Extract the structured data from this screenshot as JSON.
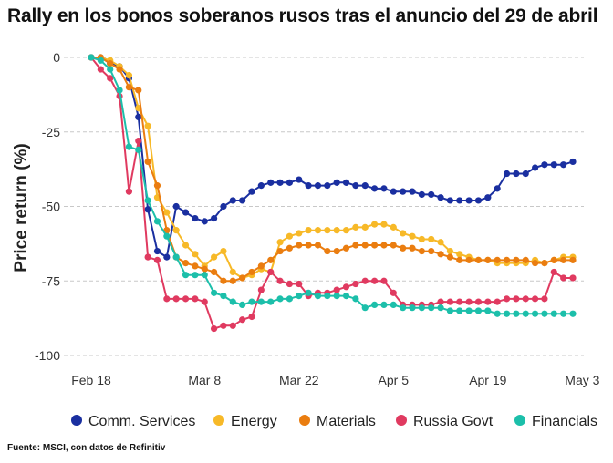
{
  "title": "Rally en los bonos soberanos rusos tras el anuncio del 29 de abril",
  "source": "Fuente: MSCI, con datos de Refinitiv",
  "chart_data": {
    "type": "line",
    "ylabel": "Price return (%)",
    "xlabel": "",
    "ylim": [
      -100,
      0
    ],
    "y_ticks": [
      0,
      -25,
      -50,
      -75,
      -100
    ],
    "x_ticks": [
      "Feb 18",
      "Mar 8",
      "Mar 22",
      "Apr 5",
      "Apr 19",
      "May 3"
    ],
    "x_tick_index": [
      0,
      12,
      22,
      32,
      42,
      52
    ],
    "grid": "horizontal dashed",
    "legend_position": "bottom",
    "series": [
      {
        "name": "Comm. Services",
        "color": "#1a2fa0",
        "values": [
          0,
          0,
          -2,
          -3,
          -7,
          -20,
          -51,
          -65,
          -67,
          -50,
          -52,
          -54,
          -55,
          -54,
          -50,
          -48,
          -48,
          -45,
          -43,
          -42,
          -42,
          -42,
          -41,
          -43,
          -43,
          -43,
          -42,
          -42,
          -43,
          -43,
          -44,
          -44,
          -45,
          -45,
          -45,
          -46,
          -46,
          -47,
          -48,
          -48,
          -48,
          -48,
          -47,
          -44,
          -39,
          -39,
          -39,
          -37,
          -36,
          -36,
          -36,
          -35
        ]
      },
      {
        "name": "Energy",
        "color": "#f7b928",
        "values": [
          0,
          0,
          -1,
          -3,
          -6,
          -17,
          -23,
          -47,
          -52,
          -58,
          -63,
          -66,
          -70,
          -67,
          -65,
          -72,
          -74,
          -73,
          -71,
          -72,
          -62,
          -60,
          -59,
          -58,
          -58,
          -58,
          -58,
          -58,
          -57,
          -57,
          -56,
          -56,
          -57,
          -59,
          -60,
          -61,
          -61,
          -62,
          -65,
          -66,
          -67,
          -68,
          -68,
          -69,
          -69,
          -69,
          -69,
          -68,
          -69,
          -68,
          -67,
          -67
        ]
      },
      {
        "name": "Materials",
        "color": "#ea7d10",
        "values": [
          0,
          0,
          -2,
          -4,
          -10,
          -11,
          -35,
          -43,
          -58,
          -67,
          -69,
          -70,
          -71,
          -72,
          -75,
          -75,
          -74,
          -72,
          -70,
          -68,
          -65,
          -64,
          -63,
          -63,
          -63,
          -65,
          -65,
          -64,
          -63,
          -63,
          -63,
          -63,
          -63,
          -64,
          -64,
          -65,
          -65,
          -66,
          -67,
          -68,
          -68,
          -68,
          -68,
          -68,
          -68,
          -68,
          -68,
          -69,
          -69,
          -68,
          -68,
          -68
        ]
      },
      {
        "name": "Russia Govt",
        "color": "#e03a60",
        "values": [
          0,
          -4,
          -7,
          -13,
          -45,
          -28,
          -67,
          -68,
          -81,
          -81,
          -81,
          -81,
          -82,
          -91,
          -90,
          -90,
          -88,
          -87,
          -78,
          -72,
          -75,
          -76,
          -76,
          -80,
          -79,
          -79,
          -78,
          -77,
          -76,
          -75,
          -75,
          -75,
          -79,
          -83,
          -83,
          -83,
          -83,
          -82,
          -82,
          -82,
          -82,
          -82,
          -82,
          -82,
          -81,
          -81,
          -81,
          -81,
          -81,
          -72,
          -74,
          -74
        ]
      },
      {
        "name": "Financials",
        "color": "#1cbfaa",
        "values": [
          0,
          -1,
          -4,
          -11,
          -30,
          -31,
          -48,
          -55,
          -60,
          -67,
          -73,
          -73,
          -73,
          -79,
          -80,
          -82,
          -83,
          -82,
          -82,
          -82,
          -81,
          -81,
          -80,
          -79,
          -80,
          -80,
          -80,
          -80,
          -81,
          -84,
          -83,
          -83,
          -83,
          -84,
          -84,
          -84,
          -84,
          -84,
          -85,
          -85,
          -85,
          -85,
          -85,
          -86,
          -86,
          -86,
          -86,
          -86,
          -86,
          -86,
          -86,
          -86
        ]
      }
    ]
  }
}
